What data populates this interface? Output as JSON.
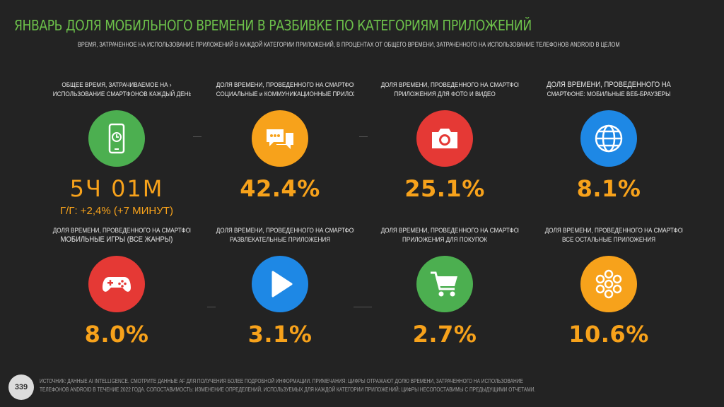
{
  "header": {
    "title": "ЯНВАРЬ ДОЛЯ МОБИЛЬНОГО ВРЕМЕНИ В РАЗБИВКЕ ПО КАТЕГОРИЯМ ПРИЛОЖЕНИЙ",
    "subtitle": "ВРЕМЯ, ЗАТРАЧЕННОЕ НА ИСПОЛЬЗОВАНИЕ ПРИЛОЖЕНИЙ В КАЖДОЙ КАТЕГОРИИ ПРИЛОЖЕНИЙ, В ПРОЦЕНТАХ ОТ ОБЩЕГО ВРЕМЕНИ, ЗАТРАЧЕННОГО НА ИСПОЛЬЗОВАНИЕ ТЕЛЕФОНОВ ANDROID В ЦЕЛОМ"
  },
  "tiles": [
    {
      "line1": "ОБЩЕЕ ВРЕМЯ, ЗАТРАЧИВАЕМОЕ НА ›",
      "line2": "ИСПОЛЬЗОВАНИЕ СМАРТФОНОВ КАЖДЫЙ ДЕНЬ",
      "value": "5Ч 01М",
      "yoy": "Г/Г: +2,4% (+7 МИНУТ)",
      "color": "#4caf50",
      "icon": "smartphone-clock-icon"
    },
    {
      "line1": "ДОЛЯ ВРЕМЕНИ, ПРОВЕДЕННОГО НА СМАРТФОНЕ:",
      "line2": "СОЦИАЛЬНЫЕ и КОММУНИКАЦИОННЫЕ ПРИЛОЖЕНИЯ",
      "value": "42.4%",
      "color": "#f7a21b",
      "icon": "chat-bubbles-icon"
    },
    {
      "line1": "ДОЛЯ ВРЕМЕНИ, ПРОВЕДЕННОГО НА СМАРТФОНЕ:",
      "line2": "ПРИЛОЖЕНИЯ ДЛЯ ФОТО И ВИДЕО",
      "value": "25.1%",
      "color": "#e53935",
      "icon": "camera-icon"
    },
    {
      "line1": "ДОЛЯ ВРЕМЕНИ, ПРОВЕДЕННОГО НА",
      "line2": "СМАРТФОНЕ: МОБИЛЬНЫЕ ВЕБ-БРАУЗЕРЫ",
      "value": "8.1%",
      "color": "#1e88e5",
      "icon": "globe-icon"
    },
    {
      "line1": "ДОЛЯ ВРЕМЕНИ, ПРОВЕДЕННОГО НА СМАРТФОНЕ:",
      "line2": "МОБИЛЬНЫЕ ИГРЫ (ВСЕ ЖАНРЫ)",
      "value": "8.0%",
      "color": "#e53935",
      "icon": "gamepad-icon"
    },
    {
      "line1": "ДОЛЯ ВРЕМЕНИ, ПРОВЕДЕННОГО НА СМАРТФОНЕ:",
      "line2": "РАЗВЛЕКАТЕЛЬНЫЕ ПРИЛОЖЕНИЯ",
      "value": "3.1%",
      "color": "#1e88e5",
      "icon": "play-icon"
    },
    {
      "line1": "ДОЛЯ ВРЕМЕНИ, ПРОВЕДЕННОГО НА СМАРТФОНЕ:",
      "line2": "ПРИЛОЖЕНИЯ ДЛЯ ПОКУПОК",
      "value": "2.7%",
      "color": "#4caf50",
      "icon": "shopping-cart-icon"
    },
    {
      "line1": "ДОЛЯ ВРЕМЕНИ, ПРОВЕДЕННОГО НА СМАРТФОНЕ:",
      "line2": "ВСЕ ОСТАЛЬНЫЕ ПРИЛОЖЕНИЯ",
      "value": "10.6%",
      "color": "#f7a21b",
      "icon": "other-apps-icon"
    }
  ],
  "footer": {
    "page_number": "339",
    "note": "ИСТОЧНИК: ДАННЫЕ AI INTELLIGENCE. СМОТРИТЕ ДАННЫЕ AF ДЛЯ ПОЛУЧЕНИЯ БОЛЕЕ ПОДРОБНОЙ ИНФОРМАЦИИ. ПРИМЕЧАНИЯ: ЦИФРЫ ОТРАЖАЮТ ДОЛЮ ВРЕМЕНИ, ЗАТРАЧЕННОГО НА ИСПОЛЬЗОВАНИЕ ТЕЛЕФОНОВ ANDROID В ТЕЧЕНИЕ 2022 ГОДА. СОПОСТАВИМОСТЬ: ИЗМЕНЕНИЕ ОПРЕДЕЛЕНИЙ, ИСПОЛЬЗУЕМЫХ ДЛЯ КАЖДОЙ КАТЕГОРИИ ПРИЛОЖЕНИЙ; ЦИФРЫ НЕСОПОСТАВИМЫ С ПРЕДЫДУЩИМИ ОТЧЕТАМИ."
  }
}
